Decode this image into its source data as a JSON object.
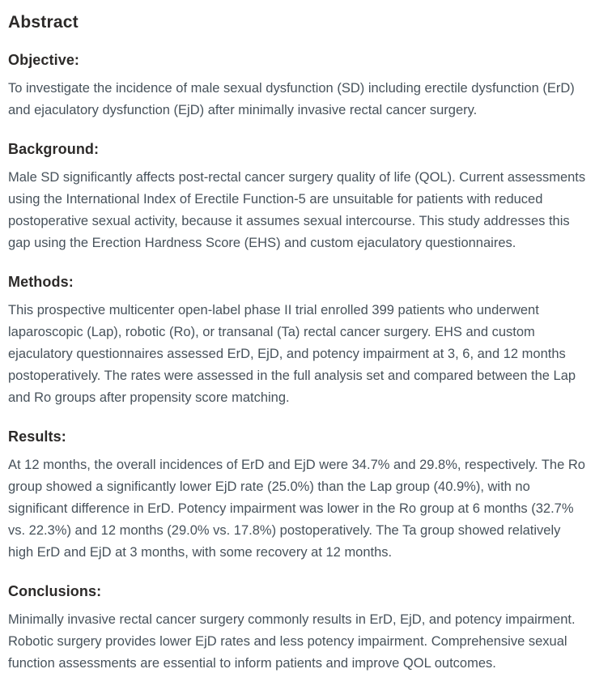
{
  "abstract": {
    "title": "Abstract",
    "sections": [
      {
        "heading": "Objective:",
        "body": "To investigate the incidence of male sexual dysfunction (SD) including erectile dysfunction (ErD) and ejaculatory dysfunction (EjD) after minimally invasive rectal cancer surgery."
      },
      {
        "heading": "Background:",
        "body": "Male SD significantly affects post-rectal cancer surgery quality of life (QOL). Current assessments using the International Index of Erectile Function-5 are unsuitable for patients with reduced postoperative sexual activity, because it assumes sexual intercourse. This study addresses this gap using the Erection Hardness Score (EHS) and custom ejaculatory questionnaires."
      },
      {
        "heading": "Methods:",
        "body": "This prospective multicenter open-label phase II trial enrolled 399 patients who underwent laparoscopic (Lap), robotic (Ro), or transanal (Ta) rectal cancer surgery. EHS and custom ejaculatory questionnaires assessed ErD, EjD, and potency impairment at 3, 6, and 12 months postoperatively. The rates were assessed in the full analysis set and compared between the Lap and Ro groups after propensity score matching."
      },
      {
        "heading": "Results:",
        "body": "At 12 months, the overall incidences of ErD and EjD were 34.7% and 29.8%, respectively. The Ro group showed a significantly lower EjD rate (25.0%) than the Lap group (40.9%), with no significant difference in ErD. Potency impairment was lower in the Ro group at 6 months (32.7% vs. 22.3%) and 12 months (29.0% vs. 17.8%) postoperatively. The Ta group showed relatively high ErD and EjD at 3 months, with some recovery at 12 months."
      },
      {
        "heading": "Conclusions:",
        "body": "Minimally invasive rectal cancer surgery commonly results in ErD, EjD, and potency impairment. Robotic surgery provides lower EjD rates and less potency impairment. Comprehensive sexual function assessments are essential to inform patients and improve QOL outcomes."
      }
    ],
    "colors": {
      "heading": "#2c2a29",
      "body_text": "#47525b",
      "background": "#ffffff"
    }
  }
}
